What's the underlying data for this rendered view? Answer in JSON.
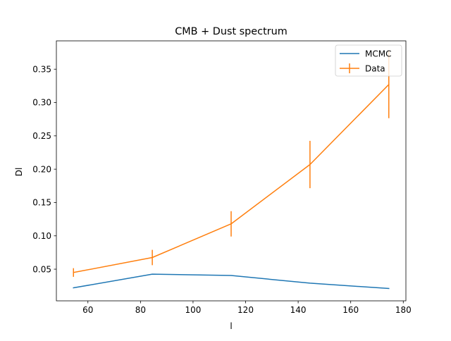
{
  "chart_data": {
    "type": "line",
    "title": "CMB + Dust spectrum",
    "xlabel": "l",
    "ylabel": "Dl",
    "xlim": [
      48,
      181
    ],
    "ylim": [
      0.0025,
      0.3925
    ],
    "xticks": [
      60,
      80,
      100,
      120,
      140,
      160,
      180
    ],
    "yticks": [
      0.05,
      0.1,
      0.15,
      0.2,
      0.25,
      0.3,
      0.35
    ],
    "xtick_labels": [
      "60",
      "80",
      "100",
      "120",
      "140",
      "160",
      "180"
    ],
    "ytick_labels": [
      "0.05",
      "0.10",
      "0.15",
      "0.20",
      "0.25",
      "0.30",
      "0.35"
    ],
    "grid": false,
    "legend": {
      "position": "upper right",
      "entries": [
        "MCMC",
        "Data"
      ]
    },
    "series": [
      {
        "name": "MCMC",
        "color": "#1f77b4",
        "x": [
          54.5,
          84.5,
          114.5,
          144.5,
          174.5
        ],
        "y": [
          0.022,
          0.0425,
          0.0405,
          0.029,
          0.021
        ]
      },
      {
        "name": "Data",
        "color": "#ff7f0e",
        "x": [
          54.5,
          84.5,
          114.5,
          144.5,
          174.5
        ],
        "y": [
          0.045,
          0.0675,
          0.118,
          0.207,
          0.327
        ],
        "yerr": [
          0.0065,
          0.0115,
          0.019,
          0.0355,
          0.0505
        ]
      }
    ]
  }
}
